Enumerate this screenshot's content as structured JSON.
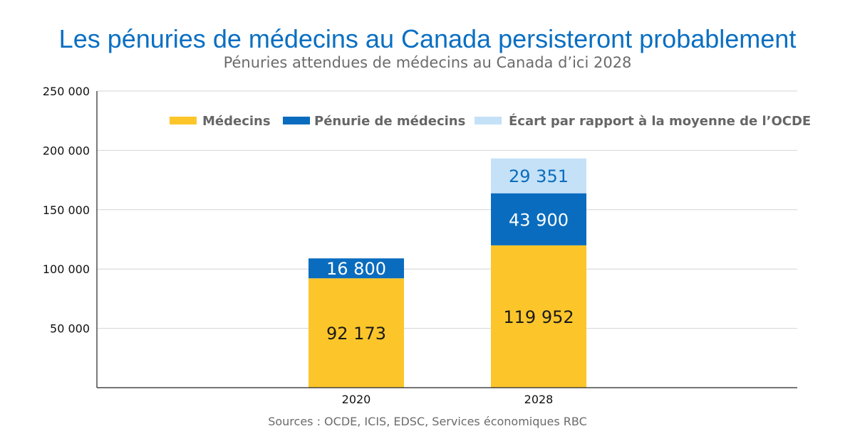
{
  "colors": {
    "medecins": "#fcc62b",
    "penurie": "#0a6cbe",
    "ecart": "#c4e1f7",
    "title": "#0a6fc2",
    "grid": "#d4d4d4",
    "axis": "#222222"
  },
  "chart_data": {
    "type": "bar",
    "stacked": true,
    "title": "Les pénuries de médecins au Canada persisteront probablement",
    "subtitle": "Pénuries attendues de médecins au Canada d’ici 2028",
    "source": "Sources : OCDE, ICIS, EDSC, Services économiques RBC",
    "categories": [
      "2020",
      "2028"
    ],
    "series": [
      {
        "name": "Médecins",
        "values": [
          92173,
          119952
        ],
        "labels": [
          "92 173",
          "119 952"
        ],
        "label_color": "#1a1a1a"
      },
      {
        "name": "Pénurie de médecins",
        "values": [
          16800,
          43900
        ],
        "labels": [
          "16 800",
          "43 900"
        ],
        "label_color": "#ffffff"
      },
      {
        "name": "Écart par rapport à la moyenne de l’OCDE",
        "values": [
          0,
          29351
        ],
        "labels": [
          "",
          "29 351"
        ],
        "label_color": "#0a6cbe"
      }
    ],
    "ylim": [
      0,
      250000
    ],
    "yticks": [
      {
        "value": 50000,
        "label": "50 000"
      },
      {
        "value": 100000,
        "label": "100 000"
      },
      {
        "value": 150000,
        "label": "150 000"
      },
      {
        "value": 200000,
        "label": "200 000"
      },
      {
        "value": 250000,
        "label": "250 000"
      }
    ],
    "grid": true,
    "legend": "top-right"
  }
}
